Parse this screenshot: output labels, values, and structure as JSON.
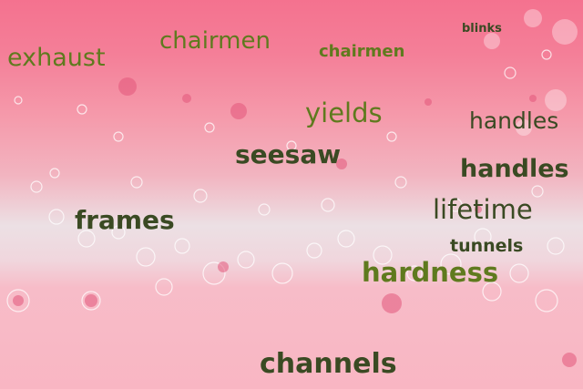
{
  "words": {
    "exhaust": "exhaust",
    "chairmen_1": "chairmen",
    "chairmen_2": "chairmen",
    "blinks": "blinks",
    "yields": "yields",
    "handles_1": "handles",
    "seesaw": "seesaw",
    "handles_2": "handles",
    "frames": "frames",
    "lifetime": "lifetime",
    "tunnels": "tunnels",
    "hardness": "hardness",
    "channels": "channels"
  },
  "colors": {
    "top_pink": "#f4728f",
    "foam_white": "#ece0e4",
    "bottom_pink": "#f9b6c3",
    "text_green": "#5f7a1e",
    "text_dark": "#3a4a23"
  }
}
